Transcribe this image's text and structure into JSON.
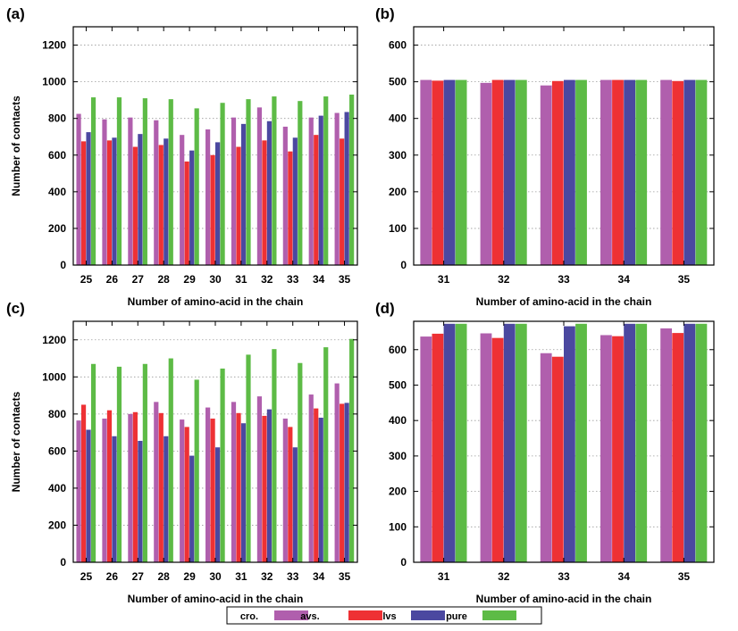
{
  "legend": {
    "items": [
      {
        "label": "cro.",
        "color": "#b05fad"
      },
      {
        "label": "avs.",
        "color": "#ee3134"
      },
      {
        "label": "lvs",
        "color": "#4b48a0"
      },
      {
        "label": "pure",
        "color": "#5dbb46"
      }
    ]
  },
  "chart_data": [
    {
      "panel": "(a)",
      "type": "bar",
      "xlabel": "Number of amino-acid in the chain",
      "ylabel": "Number of contacts",
      "ylim": [
        0,
        1300
      ],
      "yticks": [
        0,
        200,
        400,
        600,
        800,
        1000,
        1200
      ],
      "grid": true,
      "categories": [
        "25",
        "26",
        "27",
        "28",
        "29",
        "30",
        "31",
        "32",
        "33",
        "34",
        "35"
      ],
      "series": [
        {
          "name": "cro.",
          "values": [
            825,
            795,
            805,
            790,
            710,
            740,
            805,
            860,
            755,
            805,
            830
          ]
        },
        {
          "name": "avs.",
          "values": [
            675,
            680,
            645,
            655,
            565,
            600,
            645,
            680,
            620,
            710,
            690
          ]
        },
        {
          "name": "lvs",
          "values": [
            725,
            695,
            715,
            690,
            625,
            670,
            770,
            785,
            695,
            815,
            835
          ]
        },
        {
          "name": "pure",
          "values": [
            915,
            915,
            910,
            905,
            855,
            885,
            905,
            920,
            895,
            920,
            930
          ]
        }
      ]
    },
    {
      "panel": "(b)",
      "type": "bar",
      "xlabel": "Number of amino-acid in the chain",
      "ylabel": "",
      "ylim": [
        0,
        650
      ],
      "yticks": [
        0,
        100,
        200,
        300,
        400,
        500,
        600
      ],
      "grid": true,
      "categories": [
        "31",
        "32",
        "33",
        "34",
        "35"
      ],
      "series": [
        {
          "name": "cro.",
          "values": [
            505,
            497,
            490,
            505,
            505
          ]
        },
        {
          "name": "avs.",
          "values": [
            503,
            505,
            502,
            505,
            502
          ]
        },
        {
          "name": "lvs",
          "values": [
            505,
            505,
            505,
            505,
            505
          ]
        },
        {
          "name": "pure",
          "values": [
            505,
            505,
            505,
            505,
            505
          ]
        }
      ]
    },
    {
      "panel": "(c)",
      "type": "bar",
      "xlabel": "Number of amino-acid in the chain",
      "ylabel": "Number of contacts",
      "ylim": [
        0,
        1300
      ],
      "yticks": [
        0,
        200,
        400,
        600,
        800,
        1000,
        1200
      ],
      "grid": true,
      "categories": [
        "25",
        "26",
        "27",
        "28",
        "29",
        "30",
        "31",
        "32",
        "33",
        "34",
        "35"
      ],
      "series": [
        {
          "name": "cro.",
          "values": [
            765,
            775,
            800,
            865,
            770,
            835,
            865,
            895,
            775,
            905,
            965
          ]
        },
        {
          "name": "avs.",
          "values": [
            850,
            820,
            810,
            805,
            730,
            775,
            805,
            790,
            730,
            830,
            855
          ]
        },
        {
          "name": "lvs",
          "values": [
            715,
            680,
            655,
            680,
            575,
            620,
            750,
            825,
            620,
            780,
            860
          ]
        },
        {
          "name": "pure",
          "values": [
            1070,
            1055,
            1070,
            1100,
            985,
            1045,
            1120,
            1150,
            1075,
            1160,
            1205
          ]
        }
      ]
    },
    {
      "panel": "(d)",
      "type": "bar",
      "xlabel": "Number of amino-acid in the chain",
      "ylabel": "",
      "ylim": [
        0,
        680
      ],
      "yticks": [
        0,
        100,
        200,
        300,
        400,
        500,
        600
      ],
      "grid": true,
      "categories": [
        "31",
        "32",
        "33",
        "34",
        "35"
      ],
      "series": [
        {
          "name": "cro.",
          "values": [
            637,
            646,
            590,
            641,
            660
          ]
        },
        {
          "name": "avs.",
          "values": [
            645,
            633,
            580,
            638,
            647
          ]
        },
        {
          "name": "lvs",
          "values": [
            673,
            673,
            666,
            673,
            673
          ]
        },
        {
          "name": "pure",
          "values": [
            673,
            673,
            673,
            673,
            673
          ]
        }
      ]
    }
  ]
}
